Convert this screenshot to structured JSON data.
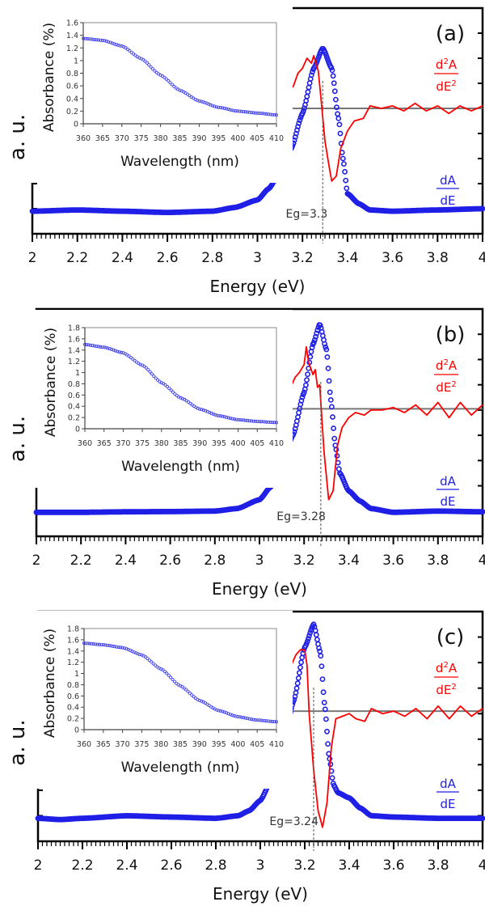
{
  "chart_data": [
    {
      "type": "line",
      "panel_label": "(a)",
      "xlabel": "Energy (eV)",
      "ylabel": "a. u.",
      "xlim": [
        2,
        4
      ],
      "xticks": [
        "2",
        "2.2",
        "2.4",
        "2.6",
        "2.8",
        "3",
        "3.2",
        "3.4",
        "3.6",
        "3.8",
        "4"
      ],
      "ylim": [
        0,
        9
      ],
      "eg_value": 3.29,
      "eg_label": "Eg=3.3",
      "zero_line": {
        "x_start": 3.14,
        "y": 5.0
      },
      "legend": {
        "red_num": "d",
        "red_sup": "2",
        "red_num_tail": "A",
        "red_den": "dE",
        "red_den_sup": "2",
        "blue_num": "dA",
        "blue_den": "dE"
      },
      "series": [
        {
          "name": "dA/dE",
          "color": "#1f1fe6",
          "style": "circles",
          "x": [
            2.0,
            2.2,
            2.4,
            2.6,
            2.8,
            2.9,
            3.0,
            3.05,
            3.1,
            3.15,
            3.2,
            3.25,
            3.29,
            3.33,
            3.36,
            3.38,
            3.4,
            3.45,
            3.5,
            3.6,
            3.8,
            4.0
          ],
          "y": [
            0.9,
            0.95,
            0.9,
            0.85,
            0.9,
            1.05,
            1.35,
            1.8,
            2.45,
            3.4,
            4.8,
            6.6,
            7.4,
            6.6,
            4.6,
            3.0,
            1.6,
            1.2,
            0.95,
            0.9,
            0.95,
            1.0
          ]
        },
        {
          "name": "d2A/dE2",
          "color": "#ff0000",
          "style": "line",
          "x": [
            3.14,
            3.16,
            3.18,
            3.2,
            3.22,
            3.24,
            3.25,
            3.27,
            3.28,
            3.3,
            3.32,
            3.33,
            3.35,
            3.37,
            3.4,
            3.43,
            3.47,
            3.5,
            3.55,
            3.6,
            3.65,
            3.7,
            3.75,
            3.8,
            3.85,
            3.9,
            3.95,
            4.0
          ],
          "y": [
            5.7,
            5.9,
            6.4,
            6.6,
            7.0,
            6.8,
            7.1,
            6.5,
            5.6,
            3.7,
            2.6,
            2.1,
            2.3,
            3.4,
            4.1,
            4.5,
            4.6,
            5.1,
            5.0,
            5.1,
            4.9,
            5.2,
            4.9,
            5.1,
            4.8,
            5.1,
            4.9,
            5.1
          ]
        }
      ],
      "inset": {
        "xlabel": "Wavelength (nm)",
        "ylabel": "Absorbance (%)",
        "xlim": [
          360,
          410
        ],
        "ylim": [
          0,
          1.6
        ],
        "ystep": 0.2,
        "xticks": [
          "360",
          "365",
          "370",
          "375",
          "380",
          "385",
          "390",
          "395",
          "400",
          "405",
          "410"
        ],
        "yticks": [
          "0",
          "0.2",
          "0.4",
          "0.6",
          "0.8",
          "1",
          "1.2",
          "1.4",
          "1.6"
        ],
        "x": [
          360,
          365,
          370,
          375,
          380,
          385,
          390,
          395,
          400,
          405,
          410
        ],
        "y": [
          1.35,
          1.32,
          1.23,
          1.03,
          0.77,
          0.53,
          0.36,
          0.26,
          0.2,
          0.17,
          0.14
        ]
      }
    },
    {
      "type": "line",
      "panel_label": "(b)",
      "xlabel": "Energy (eV)",
      "ylabel": "a. u.",
      "xlim": [
        2,
        4
      ],
      "xticks": [
        "2",
        "2.2",
        "2.4",
        "2.6",
        "2.8",
        "3",
        "3.2",
        "3.4",
        "3.6",
        "3.8",
        "4"
      ],
      "ylim": [
        0,
        9
      ],
      "eg_value": 3.275,
      "eg_label": "Eg=3.28",
      "zero_line": {
        "x_start": 3.1,
        "y": 5.05
      },
      "legend": {
        "red_num": "d",
        "red_sup": "2",
        "red_num_tail": "A",
        "red_den": "dE",
        "red_den_sup": "2",
        "blue_num": "dA",
        "blue_den": "dE"
      },
      "series": [
        {
          "name": "dA/dE",
          "color": "#1f1fe6",
          "style": "circles",
          "x": [
            2.0,
            2.2,
            2.4,
            2.6,
            2.8,
            2.9,
            3.0,
            3.05,
            3.1,
            3.15,
            3.2,
            3.24,
            3.27,
            3.3,
            3.32,
            3.34,
            3.36,
            3.4,
            3.45,
            3.5,
            3.6,
            3.8,
            4.0
          ],
          "y": [
            0.95,
            0.95,
            0.97,
            0.98,
            1.0,
            1.1,
            1.45,
            1.95,
            2.8,
            4.0,
            5.7,
            7.6,
            8.4,
            7.4,
            5.4,
            3.6,
            2.5,
            1.8,
            1.4,
            1.1,
            0.95,
            1.0,
            0.97
          ]
        },
        {
          "name": "d2A/dE2",
          "color": "#ff0000",
          "style": "line",
          "x": [
            3.1,
            3.12,
            3.14,
            3.16,
            3.18,
            3.2,
            3.21,
            3.22,
            3.24,
            3.25,
            3.26,
            3.27,
            3.28,
            3.29,
            3.31,
            3.33,
            3.35,
            3.37,
            3.4,
            3.43,
            3.47,
            3.5,
            3.55,
            3.6,
            3.65,
            3.7,
            3.75,
            3.8,
            3.85,
            3.9,
            3.95,
            4.0
          ],
          "y": [
            5.7,
            6.0,
            5.9,
            6.3,
            6.5,
            6.8,
            7.5,
            6.9,
            6.4,
            6.6,
            5.9,
            6.0,
            4.6,
            3.3,
            1.45,
            1.8,
            3.6,
            4.3,
            4.7,
            4.9,
            4.8,
            5.0,
            5.0,
            5.1,
            4.9,
            5.2,
            4.8,
            5.3,
            4.7,
            5.3,
            4.8,
            5.2
          ]
        }
      ],
      "inset": {
        "xlabel": "Wavelength (nm)",
        "ylabel": "Absorbance (%)",
        "xlim": [
          360,
          410
        ],
        "ylim": [
          0,
          1.8
        ],
        "ystep": 0.2,
        "xticks": [
          "360",
          "365",
          "370",
          "375",
          "380",
          "385",
          "390",
          "395",
          "400",
          "405",
          "410"
        ],
        "yticks": [
          "0",
          "0.2",
          "0.4",
          "0.6",
          "0.8",
          "1",
          "1.2",
          "1.4",
          "1.6",
          "1.8"
        ],
        "x": [
          360,
          365,
          370,
          375,
          380,
          385,
          390,
          395,
          400,
          405,
          410
        ],
        "y": [
          1.5,
          1.45,
          1.35,
          1.13,
          0.82,
          0.55,
          0.35,
          0.23,
          0.16,
          0.13,
          0.11
        ]
      }
    },
    {
      "type": "line",
      "panel_label": "(c)",
      "xlabel": "Energy (eV)",
      "ylabel": "a. u.",
      "xlim": [
        2,
        4
      ],
      "xticks": [
        "2",
        "2.2",
        "2.4",
        "2.6",
        "2.8",
        "3",
        "3.2",
        "3.4",
        "3.6",
        "3.8",
        "4"
      ],
      "ylim": [
        0,
        9
      ],
      "eg_value": 3.24,
      "eg_label": "Eg=3.24",
      "zero_line": {
        "x_start": 3.08,
        "y": 5.1
      },
      "legend": {
        "red_num": "d",
        "red_sup": "2",
        "red_num_tail": "A",
        "red_den": "dE",
        "red_den_sup": "2",
        "blue_num": "dA",
        "blue_den": "dE"
      },
      "series": [
        {
          "name": "dA/dE",
          "color": "#1f1fe6",
          "style": "circles",
          "x": [
            2.0,
            2.1,
            2.2,
            2.4,
            2.6,
            2.8,
            2.9,
            2.95,
            3.0,
            3.05,
            3.1,
            3.15,
            3.2,
            3.24,
            3.27,
            3.29,
            3.31,
            3.33,
            3.35,
            3.4,
            3.45,
            3.5,
            3.6,
            3.8,
            4.0
          ],
          "y": [
            0.9,
            0.85,
            0.9,
            1.0,
            0.95,
            0.9,
            1.0,
            1.2,
            1.6,
            2.4,
            3.6,
            5.5,
            7.6,
            8.5,
            7.4,
            5.3,
            3.3,
            2.2,
            1.9,
            1.7,
            1.3,
            1.0,
            0.95,
            0.9,
            0.9
          ]
        },
        {
          "name": "d2A/dE2",
          "color": "#ff0000",
          "style": "line",
          "x": [
            3.08,
            3.1,
            3.12,
            3.14,
            3.16,
            3.18,
            3.2,
            3.21,
            3.22,
            3.24,
            3.26,
            3.28,
            3.3,
            3.32,
            3.34,
            3.37,
            3.4,
            3.43,
            3.47,
            3.5,
            3.55,
            3.6,
            3.65,
            3.7,
            3.75,
            3.8,
            3.85,
            3.9,
            3.95,
            4.0
          ],
          "y": [
            6.1,
            6.4,
            6.5,
            6.9,
            7.3,
            7.5,
            7.5,
            6.9,
            5.0,
            2.8,
            1.2,
            0.55,
            1.5,
            3.7,
            4.8,
            4.9,
            5.0,
            4.8,
            4.7,
            5.2,
            5.0,
            5.1,
            4.9,
            5.2,
            4.8,
            5.3,
            4.8,
            5.3,
            4.9,
            5.2
          ]
        }
      ],
      "inset": {
        "xlabel": "Wavelength (nm)",
        "ylabel": "Absorbance (%)",
        "xlim": [
          360,
          410
        ],
        "ylim": [
          0,
          1.8
        ],
        "ystep": 0.2,
        "xticks": [
          "360",
          "365",
          "370",
          "375",
          "380",
          "385",
          "390",
          "395",
          "400",
          "405",
          "410"
        ],
        "yticks": [
          "0",
          "0.2",
          "0.4",
          "0.6",
          "0.8",
          "1",
          "1.2",
          "1.4",
          "1.6",
          "1.8"
        ],
        "x": [
          360,
          365,
          370,
          375,
          380,
          385,
          390,
          395,
          400,
          405,
          410
        ],
        "y": [
          1.54,
          1.51,
          1.46,
          1.33,
          1.08,
          0.78,
          0.52,
          0.34,
          0.23,
          0.17,
          0.14
        ]
      }
    }
  ]
}
